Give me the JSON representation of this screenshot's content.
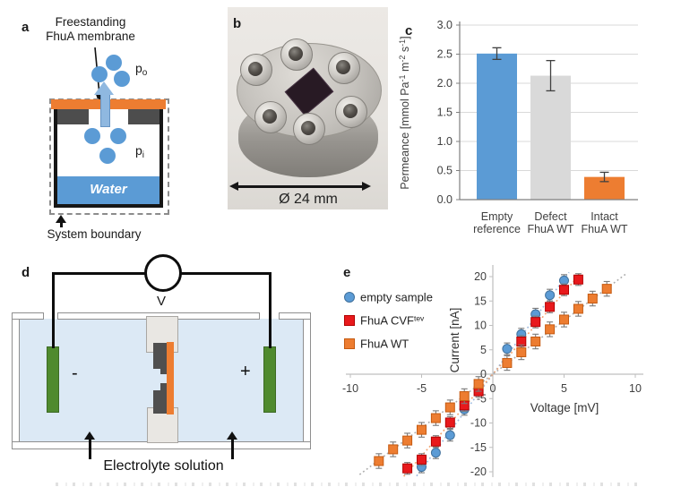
{
  "panels": {
    "a": {
      "label": "a",
      "annotation": [
        "Freestanding",
        "FhuA membrane"
      ],
      "pressure_outside": {
        "base": "p",
        "sub": "o"
      },
      "pressure_inside": {
        "base": "p",
        "sub": "i"
      },
      "water_label": "Water",
      "boundary_label": "System boundary"
    },
    "b": {
      "label": "b",
      "dimension_label": "Ø 24 mm"
    },
    "c": {
      "label": "c"
    },
    "d": {
      "label": "d",
      "voltmeter_label": "V",
      "cathode_sign": "-",
      "anode_sign": "+",
      "solution_label": "Electrolyte solution"
    },
    "e": {
      "label": "e"
    }
  },
  "colors": {
    "blue": "#5B9BD5",
    "orange": "#ED7D31",
    "gray_bar": "#D9D9D9",
    "red": "#E8191C",
    "green_electrode": "#4f8a2e",
    "solution_blue": "#dce9f5",
    "axis_gray": "#BFBFBF"
  },
  "chart_data": [
    {
      "type": "bar",
      "panel": "c",
      "title": "",
      "xlabel": "",
      "ylabel": "Permeance [mmol Pa⁻¹ m⁻² s⁻¹]",
      "ylabel_segments": [
        {
          "t": "Permeance [mmol Pa"
        },
        {
          "t": "-1",
          "sup": true
        },
        {
          "t": " m"
        },
        {
          "t": "-2",
          "sup": true
        },
        {
          "t": " s"
        },
        {
          "t": "-1",
          "sup": true
        },
        {
          "t": "]"
        }
      ],
      "categories": [
        [
          "Empty",
          "reference"
        ],
        [
          "Defect",
          "FhuA WT"
        ],
        [
          "Intact",
          "FhuA WT"
        ]
      ],
      "values": [
        2.51,
        2.13,
        0.39
      ],
      "errors": [
        0.1,
        0.26,
        0.08
      ],
      "bar_colors": [
        "#5B9BD5",
        "#D9D9D9",
        "#ED7D31"
      ],
      "ylim": [
        0,
        3.0
      ],
      "ytick_step": 0.5,
      "grid": true,
      "legend_position": "none"
    },
    {
      "type": "scatter",
      "panel": "e",
      "title": "",
      "xlabel": "Voltage [mV]",
      "ylabel": "Current [nA]",
      "xlim": [
        -10,
        10
      ],
      "ylim": [
        -20,
        20
      ],
      "xtick_step": 5,
      "ytick_step": 5,
      "grid": false,
      "legend_position": "inside-left",
      "series": [
        {
          "name": "empty sample",
          "sup": "",
          "marker": "circle",
          "color": "#5B9BD5",
          "edge": "#41719C",
          "trend_slope": 3.9,
          "trend_vmax": 5.35,
          "trend_color": "#9DB8DC",
          "err": 1.2,
          "points": [
            [
              -5,
              -19
            ],
            [
              -4,
              -16.1
            ],
            [
              -3,
              -12.5
            ],
            [
              -2,
              -7.2
            ],
            [
              1,
              5.2
            ],
            [
              2,
              8.2
            ],
            [
              3,
              12.3
            ],
            [
              4,
              16.2
            ],
            [
              5,
              19.2
            ]
          ]
        },
        {
          "name": "FhuA CVF",
          "sup": "tev",
          "marker": "square",
          "color": "#E8191C",
          "edge": "#B20000",
          "trend_slope": 3.35,
          "trend_vmax": 6.25,
          "trend_color": "#F1A16C",
          "err": 1.2,
          "points": [
            [
              -6,
              -19.3
            ],
            [
              -5,
              -17.5
            ],
            [
              -4,
              -13.8
            ],
            [
              -3,
              -9.9
            ],
            [
              -2,
              -6.4
            ],
            [
              -1,
              -3.5
            ],
            [
              2,
              6.7
            ],
            [
              3,
              10.7
            ],
            [
              4,
              13.8
            ],
            [
              5,
              17.3
            ],
            [
              6,
              19.4
            ]
          ]
        },
        {
          "name": "FhuA WT",
          "sup": "",
          "marker": "square",
          "color": "#ED7D31",
          "edge": "#C55A11",
          "trend_slope": 2.2,
          "trend_vmax": 9.35,
          "trend_color": "#ABABAB",
          "err": 1.5,
          "points": [
            [
              -8,
              -17.8
            ],
            [
              -7,
              -15.4
            ],
            [
              -6,
              -13.6
            ],
            [
              -5,
              -11.4
            ],
            [
              -4,
              -9.0
            ],
            [
              -3,
              -6.8
            ],
            [
              -2,
              -4.5
            ],
            [
              -1,
              -2.0
            ],
            [
              1,
              2.3
            ],
            [
              2,
              4.5
            ],
            [
              3,
              6.7
            ],
            [
              4,
              9.2
            ],
            [
              5,
              11.2
            ],
            [
              6,
              13.4
            ],
            [
              7,
              15.5
            ],
            [
              8,
              17.5
            ]
          ]
        }
      ]
    }
  ]
}
